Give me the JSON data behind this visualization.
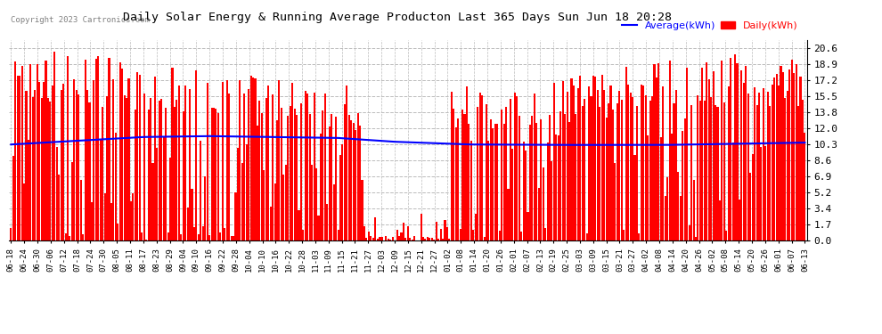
{
  "title": "Daily Solar Energy & Running Average Producton Last 365 Days Sun Jun 18 20:28",
  "copyright": "Copyright 2023 Cartronics.com",
  "legend_avg": "Average(kWh)",
  "legend_daily": "Daily(kWh)",
  "avg_color": "blue",
  "bar_color": "red",
  "background_color": "white",
  "grid_color": "#bbbbbb",
  "yticks": [
    0.0,
    1.7,
    3.4,
    5.2,
    6.9,
    8.6,
    10.3,
    12.0,
    13.8,
    15.5,
    17.2,
    18.9,
    20.6
  ],
  "ylim": [
    0.0,
    21.5
  ],
  "n_bars": 365,
  "x_labels": [
    "06-18",
    "06-24",
    "06-30",
    "07-06",
    "07-12",
    "07-18",
    "07-24",
    "07-30",
    "08-05",
    "08-11",
    "08-17",
    "08-23",
    "08-29",
    "09-04",
    "09-10",
    "09-16",
    "09-22",
    "09-28",
    "10-04",
    "10-10",
    "10-16",
    "10-22",
    "10-28",
    "11-03",
    "11-09",
    "11-15",
    "11-21",
    "11-27",
    "12-03",
    "12-09",
    "12-15",
    "12-21",
    "12-27",
    "01-02",
    "01-08",
    "01-14",
    "01-20",
    "01-26",
    "02-01",
    "02-07",
    "02-13",
    "02-19",
    "02-25",
    "03-03",
    "03-09",
    "03-15",
    "03-21",
    "03-27",
    "04-02",
    "04-08",
    "04-14",
    "04-20",
    "04-26",
    "05-02",
    "05-08",
    "05-14",
    "05-20",
    "05-26",
    "06-01",
    "06-07",
    "06-13"
  ],
  "avg_shape_x": [
    0,
    30,
    60,
    90,
    120,
    150,
    175,
    210,
    250,
    300,
    340,
    364
  ],
  "avg_shape_y": [
    10.3,
    10.7,
    11.1,
    11.2,
    11.1,
    11.0,
    10.6,
    10.3,
    10.25,
    10.25,
    10.4,
    10.5
  ]
}
